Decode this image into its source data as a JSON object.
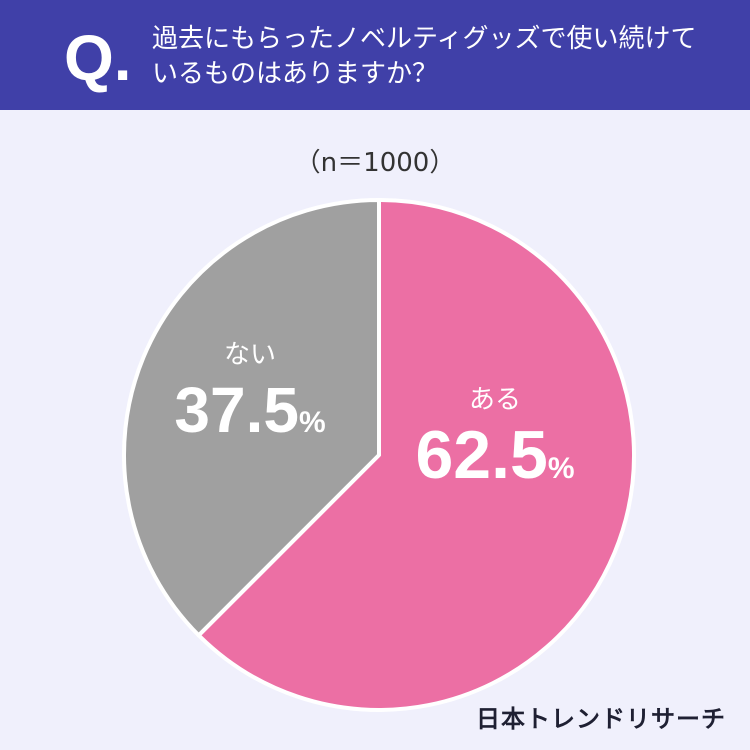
{
  "header": {
    "q_mark": "Q.",
    "question": "過去にもらったノベルティグッズで使い続けているものはありますか？"
  },
  "chart_data": {
    "type": "pie",
    "sample_label": "（n＝1000）",
    "slices": [
      {
        "label": "ある",
        "value": 62.5,
        "value_text": "62.5",
        "unit": "%",
        "color": "#ec6fa4"
      },
      {
        "label": "ない",
        "value": 37.5,
        "value_text": "37.5",
        "unit": "%",
        "color": "#a0a0a0"
      }
    ]
  },
  "footer": {
    "brand": "日本トレンドリサーチ"
  }
}
